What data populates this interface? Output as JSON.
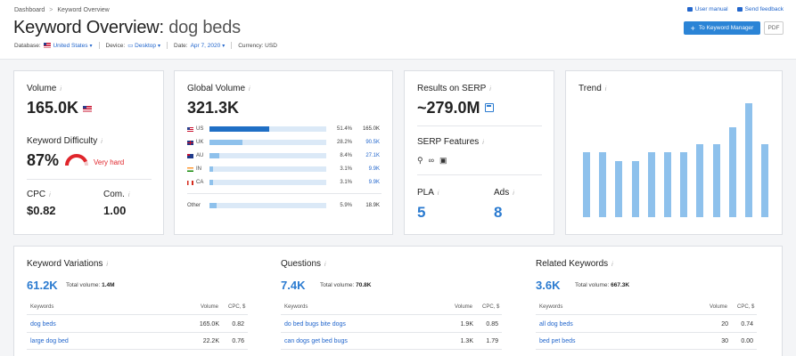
{
  "breadcrumb": [
    "Dashboard",
    "Keyword Overview"
  ],
  "title": {
    "prefix": "Keyword Overview:",
    "keyword": "dog beds"
  },
  "meta": {
    "database_label": "Database:",
    "database_value": "United States",
    "device_label": "Device:",
    "device_value": "Desktop",
    "date_label": "Date:",
    "date_value": "Apr 7, 2020",
    "currency_label": "Currency: USD"
  },
  "top_links": {
    "manual": "User manual",
    "feedback": "Send feedback"
  },
  "buttons": {
    "keyword_manager": "To Keyword Manager",
    "pdf": "PDF",
    "plus": "+"
  },
  "volume_card": {
    "label": "Volume",
    "value": "165.0K",
    "kd_label": "Keyword Difficulty",
    "kd_value": "87%",
    "kd_text": "Very hard",
    "kd_fraction": 0.87,
    "cpc_label": "CPC",
    "cpc_value": "$0.82",
    "com_label": "Com.",
    "com_value": "1.00"
  },
  "global_volume": {
    "label": "Global Volume",
    "value": "321.3K",
    "rows": [
      {
        "code": "US",
        "pct": "51.4%",
        "vol": "165.0K",
        "share": 0.514
      },
      {
        "code": "UK",
        "pct": "28.2%",
        "vol": "90.5K",
        "share": 0.282
      },
      {
        "code": "AU",
        "pct": "8.4%",
        "vol": "27.1K",
        "share": 0.084
      },
      {
        "code": "IN",
        "pct": "3.1%",
        "vol": "9.9K",
        "share": 0.031
      },
      {
        "code": "CA",
        "pct": "3.1%",
        "vol": "9.9K",
        "share": 0.031
      }
    ],
    "other": {
      "code": "Other",
      "pct": "5.9%",
      "vol": "18.9K",
      "share": 0.059
    }
  },
  "serp_card": {
    "results_label": "Results on SERP",
    "results_value": "~279.0M",
    "features_label": "SERP Features",
    "pla_label": "PLA",
    "pla_value": "5",
    "ads_label": "Ads",
    "ads_value": "8"
  },
  "trend": {
    "label": "Trend",
    "levels": [
      0.57,
      0.57,
      0.49,
      0.49,
      0.57,
      0.57,
      0.57,
      0.64,
      0.64,
      0.79,
      1.0,
      0.64
    ]
  },
  "keyword_variations": {
    "title": "Keyword Variations",
    "count": "61.2K",
    "total_label": "Total volume:",
    "total_value": "1.4M",
    "col_kw": "Keywords",
    "col_vol": "Volume",
    "col_cpc": "CPC, $",
    "rows": [
      {
        "kw": "dog beds",
        "vol": "165.0K",
        "cpc": "0.82"
      },
      {
        "kw": "large dog bed",
        "vol": "22.2K",
        "cpc": "0.76"
      }
    ]
  },
  "questions": {
    "title": "Questions",
    "count": "7.4K",
    "total_label": "Total volume:",
    "total_value": "70.8K",
    "col_kw": "Keywords",
    "col_vol": "Volume",
    "col_cpc": "CPC, $",
    "rows": [
      {
        "kw": "do bed bugs bite dogs",
        "vol": "1.9K",
        "cpc": "0.85"
      },
      {
        "kw": "can dogs get bed bugs",
        "vol": "1.3K",
        "cpc": "1.79"
      }
    ]
  },
  "related": {
    "title": "Related Keywords",
    "count": "3.6K",
    "total_label": "Total volume:",
    "total_value": "667.3K",
    "col_kw": "Keywords",
    "col_vol": "Volume",
    "col_cpc": "CPC, $",
    "rows": [
      {
        "kw": "all dog beds",
        "vol": "20",
        "cpc": "0.74"
      },
      {
        "kw": "bed pet beds",
        "vol": "30",
        "cpc": "0.00"
      }
    ]
  },
  "colors": {
    "accent": "#2b7bd0",
    "bar": "#8ec1ec",
    "bar_dark": "#1f6fc5",
    "kd_red": "#e0252b"
  }
}
